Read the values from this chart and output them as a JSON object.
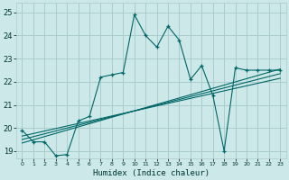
{
  "xlabel": "Humidex (Indice chaleur)",
  "ylabel": "",
  "bg_color": "#cce8e8",
  "grid_color": "#aacccc",
  "line_color": "#006666",
  "xlim": [
    -0.5,
    23.5
  ],
  "ylim": [
    18.7,
    25.4
  ],
  "yticks": [
    19,
    20,
    21,
    22,
    23,
    24,
    25
  ],
  "xticks": [
    0,
    1,
    2,
    3,
    4,
    5,
    6,
    7,
    8,
    9,
    10,
    11,
    12,
    13,
    14,
    15,
    16,
    17,
    18,
    19,
    20,
    21,
    22,
    23
  ],
  "main_line_x": [
    0,
    1,
    2,
    3,
    4,
    5,
    6,
    7,
    8,
    9,
    10,
    11,
    12,
    13,
    14,
    15,
    16,
    17,
    18,
    19,
    20,
    21,
    22,
    23
  ],
  "main_line_y": [
    19.9,
    19.4,
    19.4,
    18.8,
    18.85,
    20.3,
    20.5,
    22.2,
    22.3,
    22.4,
    24.9,
    24.0,
    23.5,
    24.4,
    23.8,
    22.1,
    22.7,
    21.4,
    19.0,
    22.6,
    22.5,
    22.5,
    22.5,
    22.5
  ],
  "trend_line1_x": [
    0,
    23
  ],
  "trend_line1_y": [
    19.35,
    22.55
  ],
  "trend_line2_x": [
    0,
    23
  ],
  "trend_line2_y": [
    19.5,
    22.35
  ],
  "trend_line3_x": [
    0,
    23
  ],
  "trend_line3_y": [
    19.65,
    22.15
  ]
}
